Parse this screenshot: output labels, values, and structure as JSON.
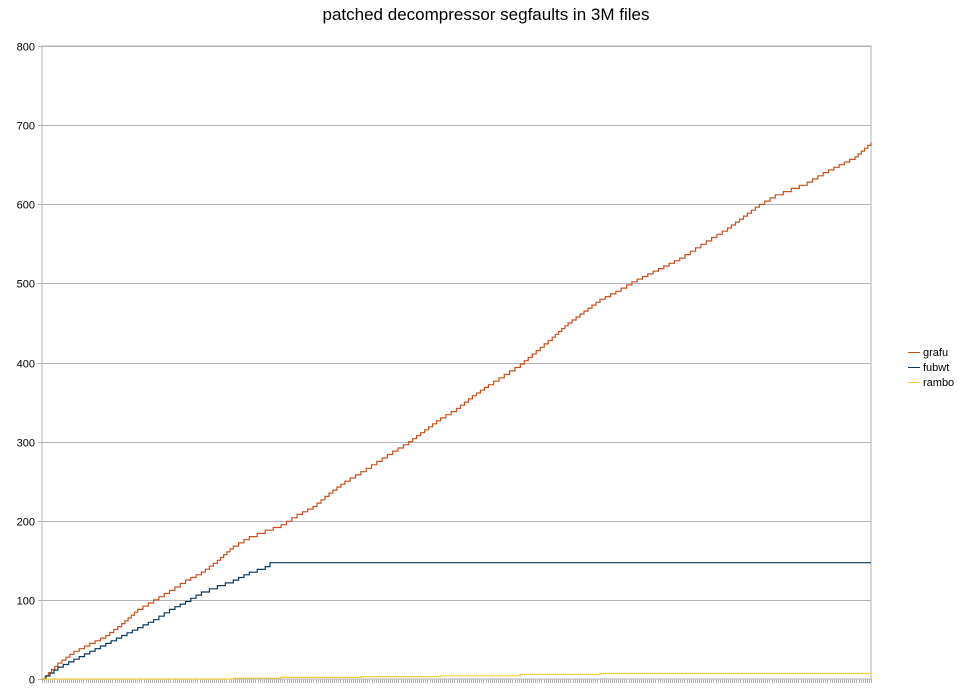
{
  "chart_data": {
    "type": "line",
    "title": "patched decompressor segfaults in 3M files",
    "xlabel": "",
    "ylabel": "",
    "ylim": [
      0,
      800
    ],
    "yticks": [
      0,
      100,
      200,
      300,
      400,
      500,
      600,
      700,
      800
    ],
    "grid": true,
    "legend_position": "right",
    "x_points": 400,
    "series": [
      {
        "name": "grafu",
        "color": "#c9501c",
        "points": [
          [
            0,
            0
          ],
          [
            10,
            20
          ],
          [
            20,
            35
          ],
          [
            30,
            45
          ],
          [
            40,
            55
          ],
          [
            50,
            70
          ],
          [
            60,
            88
          ],
          [
            70,
            100
          ],
          [
            80,
            112
          ],
          [
            90,
            125
          ],
          [
            100,
            135
          ],
          [
            110,
            150
          ],
          [
            120,
            168
          ],
          [
            130,
            180
          ],
          [
            140,
            188
          ],
          [
            150,
            195
          ],
          [
            160,
            208
          ],
          [
            170,
            218
          ],
          [
            180,
            235
          ],
          [
            190,
            250
          ],
          [
            200,
            262
          ],
          [
            210,
            275
          ],
          [
            220,
            288
          ],
          [
            230,
            300
          ],
          [
            240,
            315
          ],
          [
            250,
            330
          ],
          [
            260,
            342
          ],
          [
            270,
            358
          ],
          [
            280,
            372
          ],
          [
            290,
            385
          ],
          [
            300,
            398
          ],
          [
            310,
            415
          ],
          [
            320,
            432
          ],
          [
            330,
            450
          ],
          [
            340,
            465
          ],
          [
            350,
            480
          ],
          [
            360,
            490
          ],
          [
            370,
            502
          ],
          [
            380,
            512
          ],
          [
            390,
            522
          ],
          [
            400,
            532
          ],
          [
            410,
            545
          ],
          [
            420,
            558
          ],
          [
            430,
            570
          ],
          [
            440,
            585
          ],
          [
            450,
            600
          ],
          [
            460,
            612
          ],
          [
            470,
            620
          ],
          [
            480,
            628
          ],
          [
            490,
            640
          ],
          [
            500,
            650
          ],
          [
            510,
            660
          ],
          [
            520,
            678
          ]
        ]
      },
      {
        "name": "fubwt",
        "color": "#0a3a5c",
        "points": [
          [
            0,
            0
          ],
          [
            10,
            15
          ],
          [
            20,
            25
          ],
          [
            30,
            35
          ],
          [
            40,
            45
          ],
          [
            50,
            55
          ],
          [
            60,
            65
          ],
          [
            70,
            75
          ],
          [
            80,
            88
          ],
          [
            90,
            98
          ],
          [
            100,
            110
          ],
          [
            110,
            118
          ],
          [
            120,
            125
          ],
          [
            130,
            135
          ],
          [
            140,
            142
          ],
          [
            143,
            147
          ],
          [
            520,
            147
          ]
        ]
      },
      {
        "name": "rambo",
        "color": "#f2cd3c",
        "points": [
          [
            0,
            0
          ],
          [
            60,
            0
          ],
          [
            120,
            1
          ],
          [
            150,
            2
          ],
          [
            200,
            3
          ],
          [
            250,
            4
          ],
          [
            300,
            6
          ],
          [
            350,
            7
          ],
          [
            450,
            7
          ],
          [
            520,
            8
          ]
        ]
      }
    ]
  }
}
